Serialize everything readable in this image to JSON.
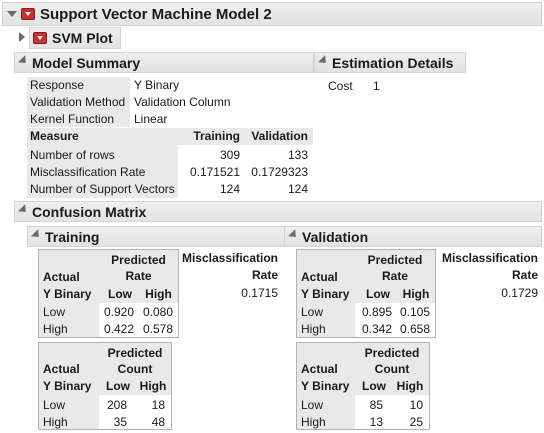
{
  "title": "Support Vector Machine Model 2",
  "svm_plot": "SVM Plot",
  "model_summary": {
    "title": "Model Summary",
    "rows": [
      {
        "label": "Response",
        "value": "Y Binary"
      },
      {
        "label": "Validation Method",
        "value": "Validation Column"
      },
      {
        "label": "Kernel Function",
        "value": "Linear"
      }
    ],
    "table": {
      "headers": [
        "Measure",
        "Training",
        "Validation"
      ],
      "rows": [
        [
          "Number of rows",
          "309",
          "133"
        ],
        [
          "Misclassification Rate",
          "0.171521",
          "0.1729323"
        ],
        [
          "Number of Support Vectors",
          "124",
          "124"
        ]
      ]
    }
  },
  "estimation": {
    "title": "Estimation Details",
    "label": "Cost",
    "value": "1"
  },
  "confusion": {
    "title": "Confusion Matrix",
    "training": {
      "title": "Training",
      "mis_label_1": "Misclassification",
      "mis_label_2": "Rate",
      "mis_value": "0.1715",
      "rate": {
        "actual": "Actual",
        "predicted": "Predicted",
        "kind": "Rate",
        "ybinary": "Y Binary",
        "low": "Low",
        "high": "High",
        "row_low": [
          "0.920",
          "0.080"
        ],
        "row_high": [
          "0.422",
          "0.578"
        ]
      },
      "count": {
        "actual": "Actual",
        "predicted": "Predicted",
        "kind": "Count",
        "ybinary": "Y Binary",
        "low": "Low",
        "high": "High",
        "row_low": [
          "208",
          "18"
        ],
        "row_high": [
          "35",
          "48"
        ]
      }
    },
    "validation": {
      "title": "Validation",
      "mis_label_1": "Misclassification",
      "mis_label_2": "Rate",
      "mis_value": "0.1729",
      "rate": {
        "actual": "Actual",
        "predicted": "Predicted",
        "kind": "Rate",
        "ybinary": "Y Binary",
        "low": "Low",
        "high": "High",
        "row_low": [
          "0.895",
          "0.105"
        ],
        "row_high": [
          "0.342",
          "0.658"
        ]
      },
      "count": {
        "actual": "Actual",
        "predicted": "Predicted",
        "kind": "Count",
        "ybinary": "Y Binary",
        "low": "Low",
        "high": "High",
        "row_low": [
          "85",
          "10"
        ],
        "row_high": [
          "13",
          "25"
        ]
      }
    }
  },
  "colors": {
    "red_button": "#c8302f",
    "header_grey": "#e9e9e9"
  },
  "icons": [
    "disclosure-triangle-icon",
    "red-triangle-menu-icon"
  ]
}
